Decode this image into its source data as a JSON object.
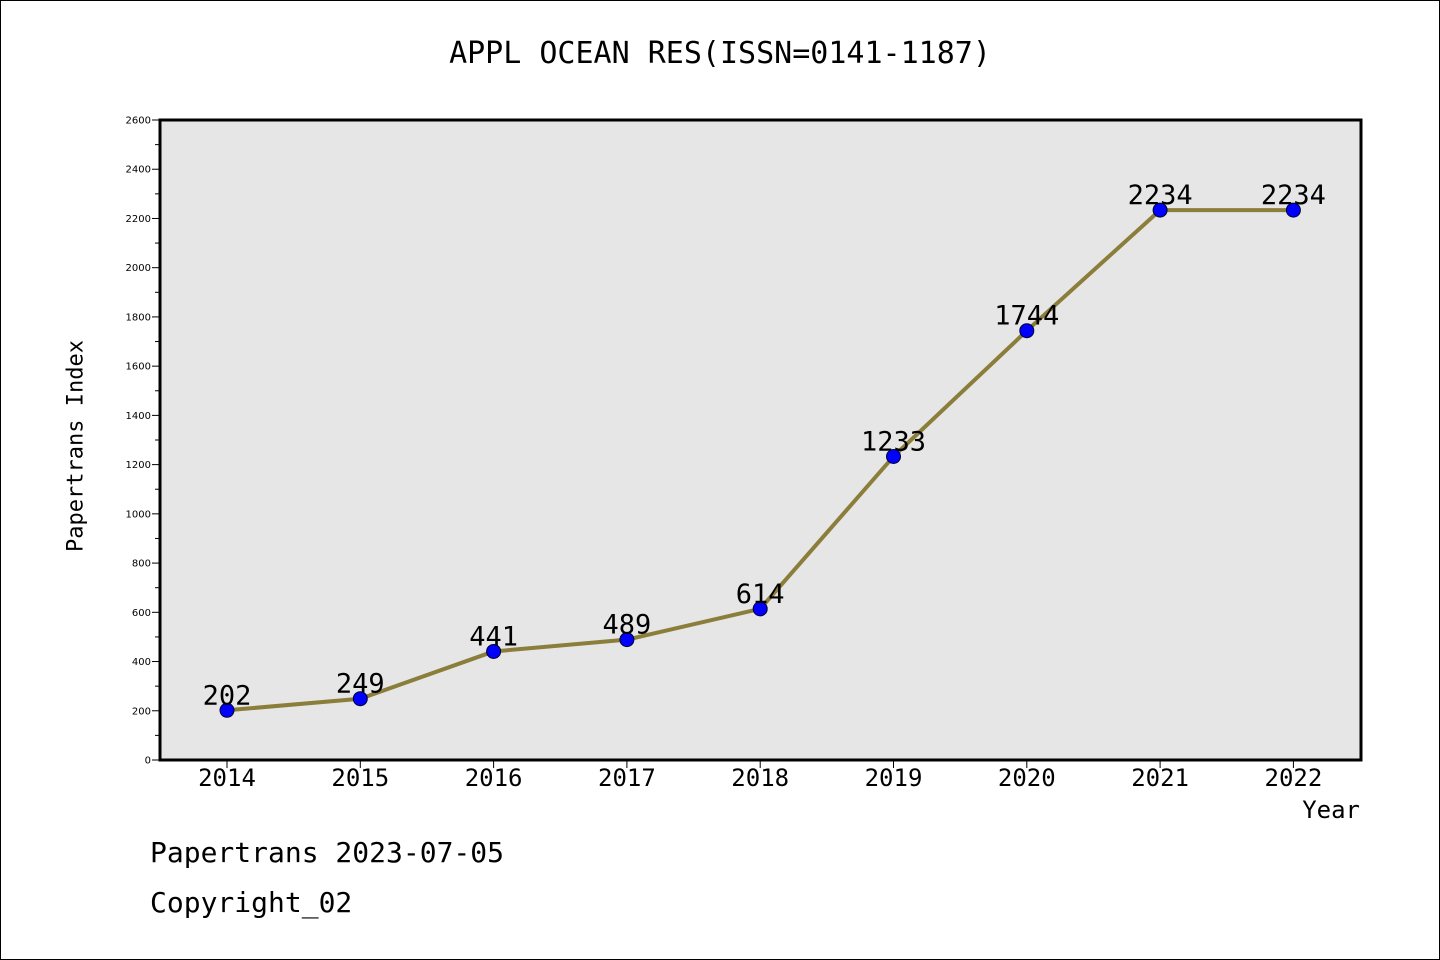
{
  "chart_data": {
    "type": "line",
    "title": "APPL OCEAN RES(ISSN=0141-1187)",
    "xlabel": "Year",
    "ylabel": "Papertrans Index",
    "categories": [
      "2014",
      "2015",
      "2016",
      "2017",
      "2018",
      "2019",
      "2020",
      "2021",
      "2022"
    ],
    "series": [
      {
        "values": [
          202,
          249,
          441,
          489,
          614,
          1233,
          1744,
          2234,
          2234
        ],
        "labels": [
          "202",
          "249",
          "441",
          "489",
          "614",
          "1233",
          "1744",
          "2234",
          "2234"
        ],
        "line_color": "#8b7d3a",
        "marker_color": "#0000ff"
      }
    ],
    "ylim": [
      0,
      2600
    ],
    "yticks": [
      "0",
      "200",
      "400",
      "600",
      "800",
      "1000",
      "1200",
      "1400",
      "1600",
      "1800",
      "2000",
      "2200",
      "2400",
      "2600"
    ],
    "grid": false,
    "plot_background": "#e6e6e6"
  },
  "footer": {
    "line1": "Papertrans 2023-07-05",
    "line2": "Copyright_02"
  }
}
